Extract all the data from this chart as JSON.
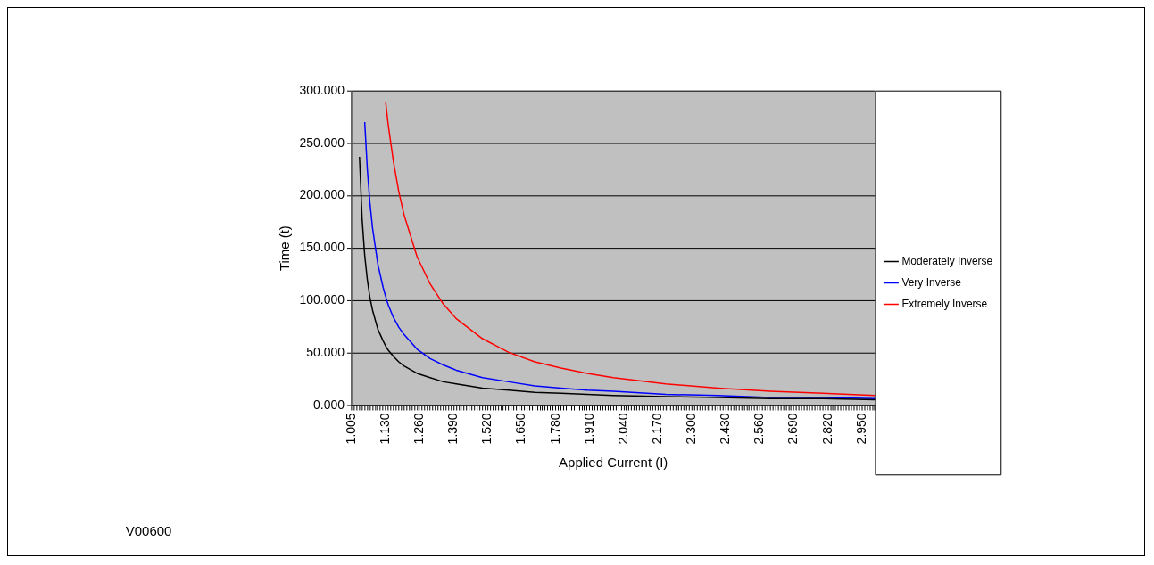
{
  "chart_data": {
    "type": "line",
    "xlabel": "Applied Current (I)",
    "ylabel": "Time (t)",
    "categories": [
      "1.005",
      null,
      null,
      null,
      null,
      null,
      null,
      null,
      null,
      null,
      null,
      null,
      null,
      "1.130",
      null,
      null,
      null,
      null,
      null,
      null,
      null,
      null,
      null,
      null,
      null,
      null,
      "1.260",
      null,
      null,
      null,
      null,
      null,
      null,
      null,
      null,
      null,
      null,
      null,
      null,
      "1.390",
      null,
      null,
      null,
      null,
      null,
      null,
      null,
      null,
      null,
      null,
      null,
      null,
      "1.520",
      null,
      null,
      null,
      null,
      null,
      null,
      null,
      null,
      null,
      null,
      null,
      null,
      "1.650",
      null,
      null,
      null,
      null,
      null,
      null,
      null,
      null,
      null,
      null,
      null,
      null,
      "1.780",
      null,
      null,
      null,
      null,
      null,
      null,
      null,
      null,
      null,
      null,
      null,
      null,
      "1.910",
      null,
      null,
      null,
      null,
      null,
      null,
      null,
      null,
      null,
      null,
      null,
      null,
      "2.040",
      null,
      null,
      null,
      null,
      null,
      null,
      null,
      null,
      null,
      null,
      null,
      null,
      "2.170",
      null,
      null,
      null,
      null,
      null,
      null,
      null,
      null,
      null,
      null,
      null,
      null,
      "2.300",
      null,
      null,
      null,
      null,
      null,
      null,
      null,
      null,
      null,
      null,
      null,
      null,
      "2.430",
      null,
      null,
      null,
      null,
      null,
      null,
      null,
      null,
      null,
      null,
      null,
      null,
      "2.560",
      null,
      null,
      null,
      null,
      null,
      null,
      null,
      null,
      null,
      null,
      null,
      null,
      "2.690",
      null,
      null,
      null,
      null,
      null,
      null,
      null,
      null,
      null,
      null,
      null,
      null,
      "2.820",
      null,
      null,
      null,
      null,
      null,
      null,
      null,
      null,
      null,
      null,
      null,
      null,
      "2.950",
      null,
      null,
      null,
      null,
      null
    ],
    "series": [
      {
        "name": "Moderately Inverse",
        "color": "#000000",
        "values": [
          null,
          null,
          null,
          237,
          178,
          143,
          120,
          103,
          91,
          null,
          73,
          null,
          62,
          57,
          53,
          null,
          47,
          null,
          42,
          null,
          38,
          null,
          null,
          null,
          null,
          31,
          null,
          null,
          null,
          null,
          27,
          null,
          null,
          null,
          null,
          23,
          null,
          null,
          null,
          null,
          21,
          null,
          null,
          null,
          null,
          null,
          null,
          null,
          null,
          null,
          17,
          null,
          null,
          null,
          null,
          null,
          null,
          null,
          null,
          null,
          15,
          null,
          null,
          null,
          null,
          null,
          null,
          null,
          null,
          null,
          13,
          null,
          null,
          null,
          null,
          null,
          null,
          null,
          null,
          null,
          12,
          null,
          null,
          null,
          null,
          null,
          null,
          null,
          null,
          null,
          11,
          null,
          null,
          null,
          null,
          null,
          null,
          null,
          null,
          null,
          10,
          null,
          null,
          null,
          null,
          null,
          null,
          null,
          null,
          null,
          null,
          null,
          null,
          null,
          null,
          null,
          null,
          null,
          null,
          null,
          9,
          null,
          null,
          null,
          null,
          null,
          null,
          null,
          null,
          null,
          null,
          null,
          null,
          null,
          null,
          null,
          null,
          null,
          null,
          null,
          8,
          null,
          null,
          null,
          null,
          null,
          null,
          null,
          null,
          null,
          null,
          null,
          null,
          null,
          null,
          null,
          null,
          null,
          null,
          null,
          7,
          null,
          null,
          null,
          null,
          null,
          null,
          null,
          null,
          null,
          null,
          null,
          null,
          null,
          null,
          null,
          null,
          null,
          null,
          null,
          7,
          null,
          null,
          null,
          null,
          null,
          null,
          null,
          null,
          null,
          null,
          null,
          null,
          null,
          null,
          null,
          null,
          null,
          null,
          null,
          6
        ]
      },
      {
        "name": "Very Inverse",
        "color": "#0000ff",
        "values": [
          null,
          null,
          null,
          null,
          null,
          270,
          225,
          193,
          169,
          null,
          135,
          null,
          113,
          104,
          96,
          null,
          84,
          null,
          75,
          null,
          68,
          null,
          null,
          null,
          null,
          54,
          null,
          null,
          null,
          null,
          45,
          null,
          null,
          null,
          null,
          39,
          null,
          null,
          null,
          null,
          34,
          null,
          null,
          null,
          null,
          null,
          null,
          null,
          null,
          null,
          27,
          null,
          null,
          null,
          null,
          null,
          null,
          null,
          null,
          null,
          23,
          null,
          null,
          null,
          null,
          null,
          null,
          null,
          null,
          null,
          19,
          null,
          null,
          null,
          null,
          null,
          null,
          null,
          null,
          null,
          17,
          null,
          null,
          null,
          null,
          null,
          null,
          null,
          null,
          null,
          15,
          null,
          null,
          null,
          null,
          null,
          null,
          null,
          null,
          null,
          14,
          null,
          null,
          null,
          null,
          null,
          null,
          null,
          null,
          null,
          null,
          null,
          null,
          null,
          null,
          null,
          null,
          null,
          null,
          null,
          11,
          null,
          null,
          null,
          null,
          null,
          null,
          null,
          null,
          null,
          null,
          null,
          null,
          null,
          null,
          null,
          null,
          null,
          null,
          null,
          10,
          null,
          null,
          null,
          null,
          null,
          null,
          null,
          null,
          null,
          null,
          null,
          null,
          null,
          null,
          null,
          null,
          null,
          null,
          null,
          8,
          null,
          null,
          null,
          null,
          null,
          null,
          null,
          null,
          null,
          null,
          null,
          null,
          null,
          null,
          null,
          null,
          null,
          null,
          null,
          8,
          null,
          null,
          null,
          null,
          null,
          null,
          null,
          null,
          null,
          null,
          null,
          null,
          null,
          null,
          null,
          null,
          null,
          null,
          null,
          7
        ]
      },
      {
        "name": "Extremely Inverse",
        "color": "#ff0000",
        "values": [
          null,
          null,
          null,
          null,
          null,
          null,
          null,
          null,
          null,
          null,
          null,
          null,
          null,
          289,
          267,
          null,
          232,
          null,
          204,
          null,
          182,
          null,
          null,
          null,
          null,
          142,
          null,
          null,
          null,
          null,
          116,
          null,
          null,
          null,
          null,
          97,
          null,
          null,
          null,
          null,
          83,
          null,
          null,
          null,
          null,
          null,
          null,
          null,
          null,
          null,
          64,
          null,
          null,
          null,
          null,
          null,
          null,
          null,
          null,
          null,
          51,
          null,
          null,
          null,
          null,
          null,
          null,
          null,
          null,
          null,
          42,
          null,
          null,
          null,
          null,
          null,
          null,
          null,
          null,
          null,
          36,
          null,
          null,
          null,
          null,
          null,
          null,
          null,
          null,
          null,
          31,
          null,
          null,
          null,
          null,
          null,
          null,
          null,
          null,
          null,
          27,
          null,
          null,
          null,
          null,
          null,
          null,
          null,
          null,
          null,
          null,
          null,
          null,
          null,
          null,
          null,
          null,
          null,
          null,
          null,
          21,
          null,
          null,
          null,
          null,
          null,
          null,
          null,
          null,
          null,
          null,
          null,
          null,
          null,
          null,
          null,
          null,
          null,
          null,
          null,
          17,
          null,
          null,
          null,
          null,
          null,
          null,
          null,
          null,
          null,
          null,
          null,
          null,
          null,
          null,
          null,
          null,
          null,
          null,
          null,
          14,
          null,
          null,
          null,
          null,
          null,
          null,
          null,
          null,
          null,
          null,
          null,
          null,
          null,
          null,
          null,
          null,
          null,
          null,
          null,
          12,
          null,
          null,
          null,
          null,
          null,
          null,
          null,
          null,
          null,
          null,
          null,
          null,
          null,
          null,
          null,
          null,
          null,
          null,
          null,
          10
        ]
      }
    ],
    "ylim": [
      0,
      300
    ],
    "yticks": [
      {
        "value": 0,
        "label": "0.000"
      },
      {
        "value": 50,
        "label": "50.000"
      },
      {
        "value": 100,
        "label": "100.000"
      },
      {
        "value": 150,
        "label": "150.000"
      },
      {
        "value": 200,
        "label": "200.000"
      },
      {
        "value": 250,
        "label": "250.000"
      },
      {
        "value": 300,
        "label": "300.000"
      }
    ],
    "grid": "y",
    "legend": "right",
    "annotations": [
      "V00600"
    ]
  }
}
